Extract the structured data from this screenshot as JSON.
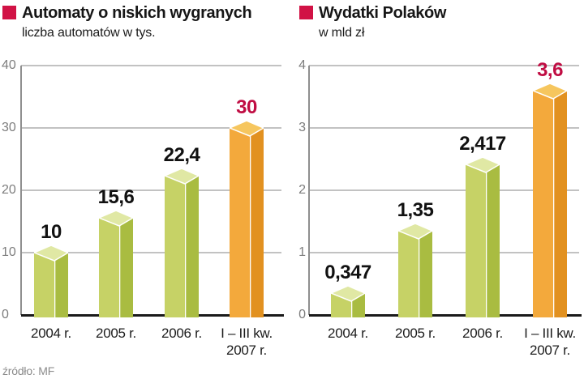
{
  "source_label": "źródło: MF",
  "colors": {
    "legend": "#d11245",
    "value": "#111111",
    "highlight_value": "#c00d43",
    "bar_front": "#c6d266",
    "bar_side": "#a9bc41",
    "bar_top": "#e0e8a4",
    "highlight_front": "#f3a93c",
    "highlight_side": "#e29120",
    "highlight_top": "#f6c65e"
  },
  "chart_data": [
    {
      "type": "bar",
      "title": "Automaty o niskich wygranych",
      "subtitle": "liczba automatów w tys.",
      "categories": [
        "2004 r.",
        "2005 r.",
        "2006 r.",
        "I – III kw.\n2007 r."
      ],
      "values": [
        10,
        15.6,
        22.4,
        30
      ],
      "value_labels": [
        "10",
        "15,6",
        "22,4",
        "30"
      ],
      "highlight_index": 3,
      "ylim": [
        0,
        40
      ],
      "yticks": [
        0,
        10,
        20,
        30,
        40
      ],
      "grid": true,
      "legend_position": "top-left"
    },
    {
      "type": "bar",
      "title": "Wydatki Polaków",
      "subtitle": "w mld zł",
      "categories": [
        "2004 r.",
        "2005 r.",
        "2006 r.",
        "I – III kw.\n2007 r."
      ],
      "values": [
        0.347,
        1.35,
        2.417,
        3.6
      ],
      "value_labels": [
        "0,347",
        "1,35",
        "2,417",
        "3,6"
      ],
      "highlight_index": 3,
      "ylim": [
        0,
        4
      ],
      "yticks": [
        0,
        1,
        2,
        3,
        4
      ],
      "grid": true,
      "legend_position": "top-left"
    }
  ]
}
